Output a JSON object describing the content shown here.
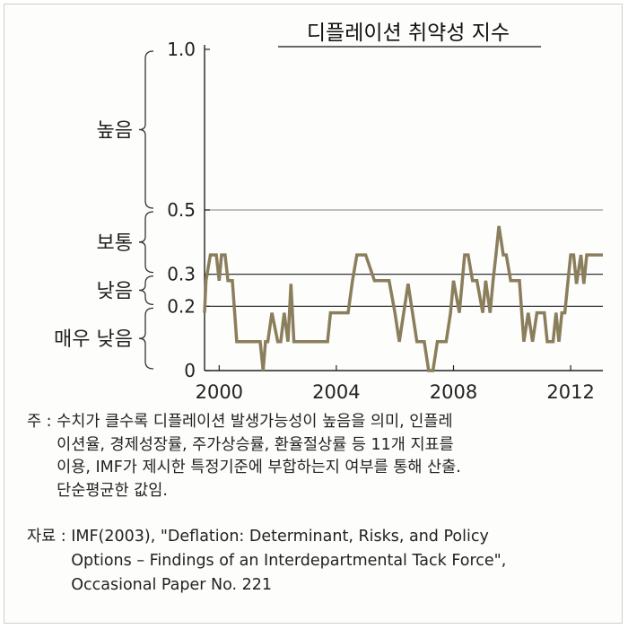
{
  "chart_data": {
    "type": "line",
    "title": "디플레이션 취약성 지수",
    "xlabel": "",
    "ylabel": "",
    "xlim": [
      1999.5,
      2013.1
    ],
    "ylim": [
      0,
      1.0
    ],
    "x_ticks": [
      "2000",
      "2004",
      "2008",
      "2012"
    ],
    "y_ticks": [
      "1.0",
      "0.5",
      "0.3",
      "0.2",
      "0"
    ],
    "reference_lines": [
      0.5,
      0.3,
      0.2
    ],
    "grid": false,
    "series_color": "#8a7e5c",
    "bands": [
      {
        "label": "높음",
        "from": 0.5,
        "to": 1.0
      },
      {
        "label": "보통",
        "from": 0.3,
        "to": 0.5
      },
      {
        "label": "낮음",
        "from": 0.2,
        "to": 0.3
      },
      {
        "label": "매우 낮음",
        "from": 0.0,
        "to": 0.2
      }
    ],
    "series": [
      {
        "x": [
          1999.5,
          1999.55,
          1999.7,
          1999.9,
          2000.0,
          2000.08,
          2000.2,
          2000.3,
          2000.45,
          2000.6,
          2001.0,
          2001.3,
          2001.4,
          2001.5,
          2001.58,
          2001.66,
          2001.8,
          2002.0,
          2002.1,
          2002.22,
          2002.35,
          2002.45,
          2002.55,
          2002.62,
          2002.7,
          2003.0,
          2003.4,
          2003.7,
          2003.8,
          2004.0,
          2004.2,
          2004.4,
          2004.55,
          2004.7,
          2004.8,
          2005.0,
          2005.3,
          2005.45,
          2005.6,
          2005.8,
          2006.0,
          2006.15,
          2006.3,
          2006.45,
          2006.6,
          2006.75,
          2006.9,
          2007.0,
          2007.15,
          2007.3,
          2007.45,
          2007.6,
          2007.75,
          2007.9,
          2008.0,
          2008.2,
          2008.3,
          2008.38,
          2008.5,
          2008.65,
          2008.8,
          2009.0,
          2009.1,
          2009.25,
          2009.35,
          2009.45,
          2009.55,
          2009.7,
          2009.8,
          2009.95,
          2010.1,
          2010.25,
          2010.4,
          2010.55,
          2010.7,
          2010.85,
          2011.0,
          2011.1,
          2011.2,
          2011.3,
          2011.4,
          2011.5,
          2011.6,
          2011.7,
          2011.8,
          2011.9,
          2012.0,
          2012.1,
          2012.2,
          2012.35,
          2012.45,
          2012.55,
          2012.65,
          2012.75,
          2012.85,
          2012.95,
          2013.1
        ],
        "y": [
          0.18,
          0.28,
          0.36,
          0.36,
          0.28,
          0.36,
          0.36,
          0.28,
          0.28,
          0.09,
          0.09,
          0.09,
          0.09,
          0.0,
          0.09,
          0.09,
          0.18,
          0.09,
          0.09,
          0.18,
          0.09,
          0.27,
          0.09,
          0.09,
          0.09,
          0.09,
          0.09,
          0.09,
          0.18,
          0.18,
          0.18,
          0.18,
          0.28,
          0.36,
          0.36,
          0.36,
          0.28,
          0.28,
          0.28,
          0.28,
          0.18,
          0.09,
          0.18,
          0.27,
          0.18,
          0.09,
          0.09,
          0.09,
          0.0,
          0.0,
          0.09,
          0.09,
          0.09,
          0.18,
          0.28,
          0.18,
          0.28,
          0.36,
          0.36,
          0.28,
          0.28,
          0.18,
          0.28,
          0.18,
          0.28,
          0.36,
          0.45,
          0.36,
          0.36,
          0.28,
          0.28,
          0.28,
          0.09,
          0.18,
          0.09,
          0.18,
          0.18,
          0.18,
          0.09,
          0.09,
          0.09,
          0.18,
          0.09,
          0.18,
          0.18,
          0.27,
          0.36,
          0.36,
          0.27,
          0.36,
          0.27,
          0.36,
          0.36,
          0.36,
          0.36,
          0.36,
          0.36
        ]
      }
    ]
  },
  "notes": {
    "note_prefix": "주 : ",
    "note_lines": [
      "수치가 클수록 디플레이션 발생가능성이 높음을 의미, 인플레",
      "이션율, 경제성장률, 주가상승률, 환율절상률 등 11개 지표를",
      "이용, IMF가 제시한 특정기준에 부합하는지 여부를 통해 산출.",
      "단순평균한 값임."
    ],
    "source_prefix": "자료 : ",
    "source_lines": [
      "IMF(2003), \"Deflation: Determinant, Risks, and Policy",
      "Options – Findings of an Interdepartmental Tack Force\",",
      "Occasional Paper No. 221"
    ]
  }
}
